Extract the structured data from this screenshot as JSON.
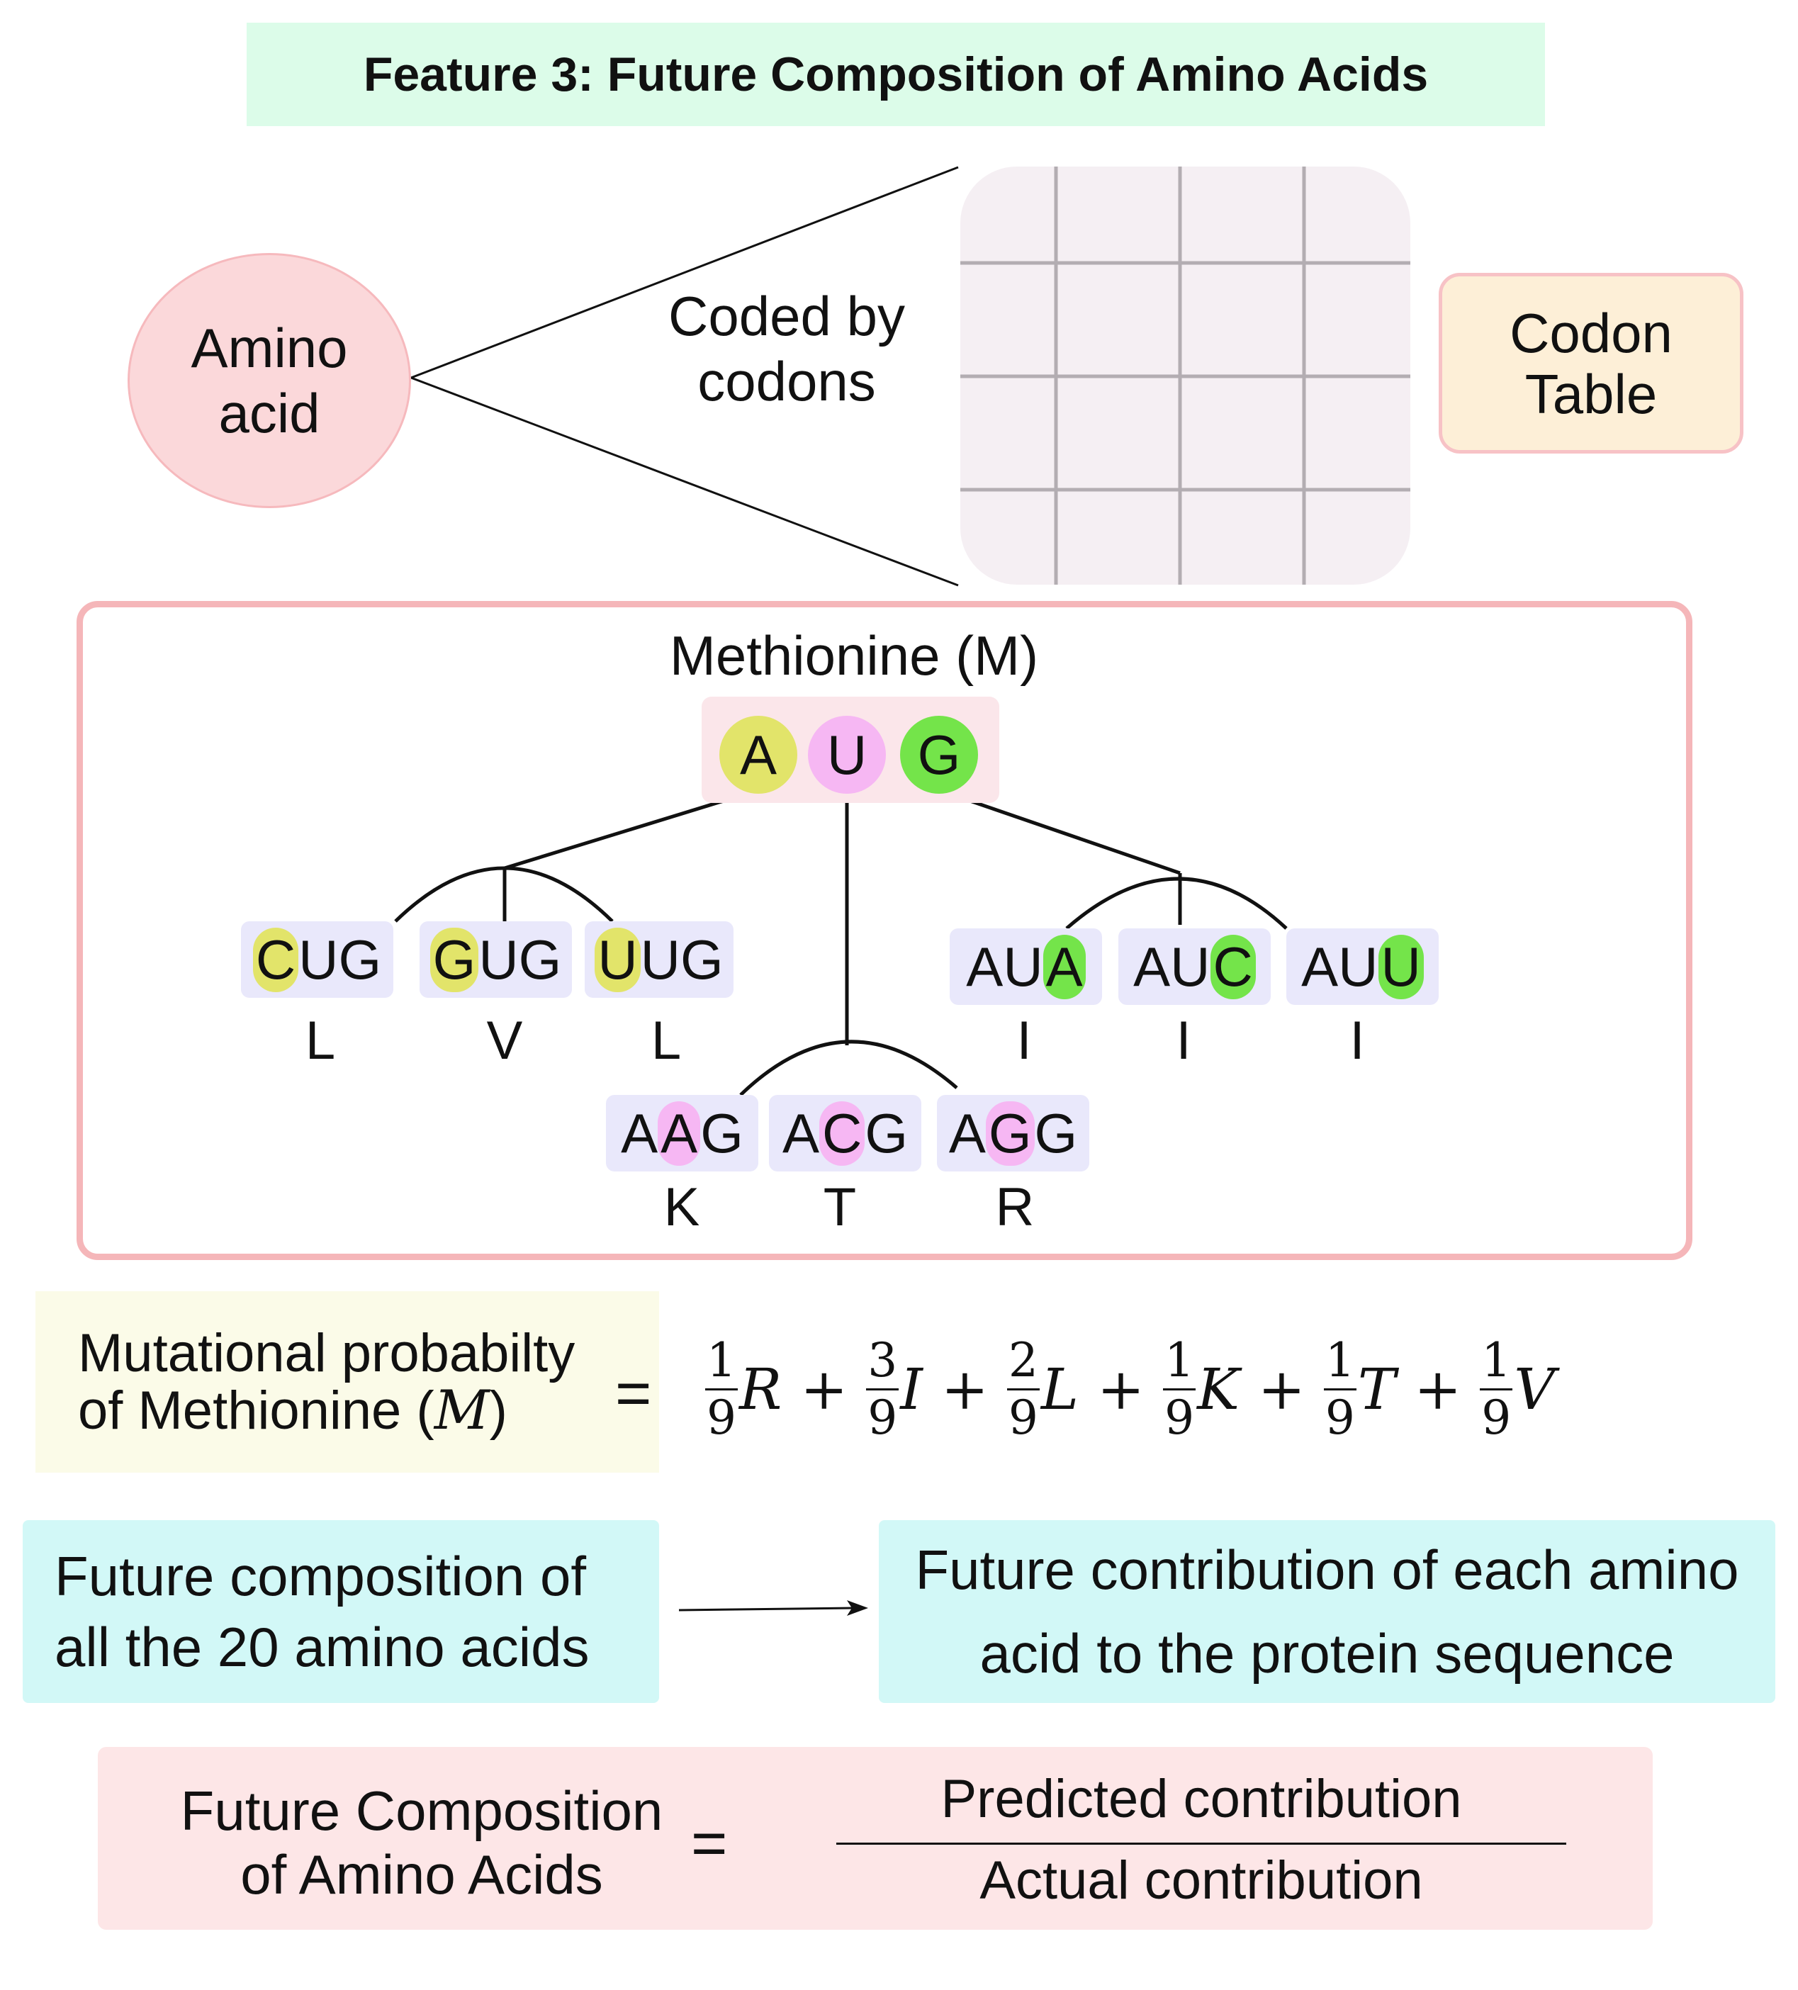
{
  "title": "Feature 3: Future Composition of Amino Acids",
  "top": {
    "amino_acid_l1": "Amino",
    "amino_acid_l2": "acid",
    "coded_by_l1": "Coded by",
    "coded_by_l2": "codons",
    "codon_table_l1": "Codon",
    "codon_table_l2": "Table"
  },
  "methionine": {
    "label": "Methionine (M)",
    "bases": [
      "A",
      "U",
      "G"
    ],
    "codons": [
      {
        "pre": "",
        "mut": "C",
        "post": "UG",
        "aa": "L",
        "color": "yellow"
      },
      {
        "pre": "",
        "mut": "G",
        "post": "UG",
        "aa": "V",
        "color": "yellow"
      },
      {
        "pre": "",
        "mut": "U",
        "post": "UG",
        "aa": "L",
        "color": "yellow"
      },
      {
        "pre": "A",
        "mut": "A",
        "post": "G",
        "aa": "K",
        "color": "pink"
      },
      {
        "pre": "A",
        "mut": "C",
        "post": "G",
        "aa": "T",
        "color": "pink"
      },
      {
        "pre": "A",
        "mut": "G",
        "post": "G",
        "aa": "R",
        "color": "pink"
      },
      {
        "pre": "AU",
        "mut": "A",
        "post": "",
        "aa": "I",
        "color": "green"
      },
      {
        "pre": "AU",
        "mut": "C",
        "post": "",
        "aa": "I",
        "color": "green"
      },
      {
        "pre": "AU",
        "mut": "U",
        "post": "",
        "aa": "I",
        "color": "green"
      }
    ]
  },
  "mutational": {
    "label_l1": "Mutational probabilty",
    "label_l2_pre": "of Methionine (",
    "label_l2_var": "M",
    "label_l2_post": ")",
    "equals": "=",
    "terms": [
      {
        "num": "1",
        "den": "9",
        "var": "R"
      },
      {
        "num": "3",
        "den": "9",
        "var": "I"
      },
      {
        "num": "2",
        "den": "9",
        "var": "L"
      },
      {
        "num": "1",
        "den": "9",
        "var": "K"
      },
      {
        "num": "1",
        "den": "9",
        "var": "T"
      },
      {
        "num": "1",
        "den": "9",
        "var": "V"
      }
    ],
    "plus": "+"
  },
  "future_flow": {
    "left_l1": "Future composition of",
    "left_l2": "all the 20 amino acids",
    "right_l1": "Future contribution of each amino",
    "right_l2": "acid to the protein sequence"
  },
  "final": {
    "left_l1": "Future Composition",
    "left_l2": "of Amino Acids",
    "equals": "=",
    "numerator": "Predicted contribution",
    "denominator": "Actual contribution"
  },
  "colors": {
    "yellow": "#e2e46a",
    "pink": "#f6b7f3",
    "green": "#74e44a"
  }
}
